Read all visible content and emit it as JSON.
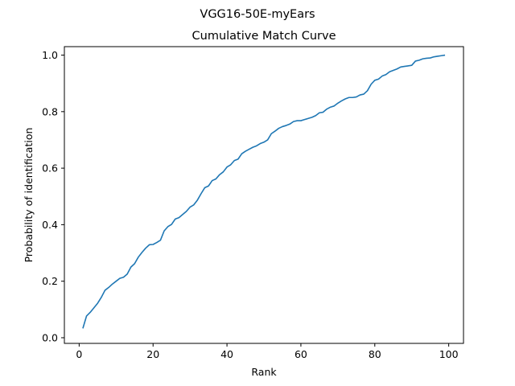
{
  "figure": {
    "suptitle": "VGG16-50E-myEars"
  },
  "chart_data": {
    "type": "line",
    "title": "Cumulative Match Curve",
    "xlabel": "Rank",
    "ylabel": "Probability of identification",
    "xlim": [
      -4,
      104
    ],
    "ylim": [
      -0.02,
      1.03
    ],
    "xticks": [
      0,
      20,
      40,
      60,
      80,
      100
    ],
    "yticks": [
      0.0,
      0.2,
      0.4,
      0.6,
      0.8,
      1.0
    ],
    "xtick_labels": [
      "0",
      "20",
      "40",
      "60",
      "80",
      "100"
    ],
    "ytick_labels": [
      "0.0",
      "0.2",
      "0.4",
      "0.6",
      "0.8",
      "1.0"
    ],
    "grid": false,
    "line_color": "#1f77b4",
    "series": [
      {
        "x": [
          1,
          2,
          3,
          4,
          5,
          6,
          7,
          8,
          9,
          10,
          11,
          12,
          13,
          14,
          15,
          16,
          17,
          18,
          19,
          20,
          21,
          22,
          23,
          24,
          25,
          26,
          27,
          28,
          29,
          30,
          31,
          32,
          33,
          34,
          35,
          36,
          37,
          38,
          39,
          40,
          41,
          42,
          43,
          44,
          45,
          46,
          47,
          48,
          49,
          50,
          51,
          52,
          53,
          54,
          55,
          56,
          57,
          58,
          59,
          60,
          61,
          62,
          63,
          64,
          65,
          66,
          67,
          68,
          69,
          70,
          71,
          72,
          73,
          74,
          75,
          76,
          77,
          78,
          79,
          80,
          81,
          82,
          83,
          84,
          85,
          86,
          87,
          88,
          89,
          90,
          91,
          92,
          93,
          94,
          95,
          96,
          97,
          98,
          99
        ],
        "y": [
          0.033,
          0.077,
          0.09,
          0.106,
          0.122,
          0.143,
          0.168,
          0.178,
          0.19,
          0.2,
          0.21,
          0.214,
          0.225,
          0.25,
          0.262,
          0.285,
          0.302,
          0.317,
          0.329,
          0.33,
          0.337,
          0.345,
          0.378,
          0.393,
          0.401,
          0.42,
          0.425,
          0.436,
          0.447,
          0.462,
          0.47,
          0.487,
          0.51,
          0.531,
          0.537,
          0.556,
          0.562,
          0.577,
          0.587,
          0.604,
          0.612,
          0.627,
          0.632,
          0.651,
          0.66,
          0.667,
          0.674,
          0.679,
          0.687,
          0.692,
          0.7,
          0.722,
          0.731,
          0.741,
          0.747,
          0.751,
          0.756,
          0.765,
          0.768,
          0.768,
          0.772,
          0.776,
          0.78,
          0.786,
          0.796,
          0.798,
          0.809,
          0.816,
          0.82,
          0.83,
          0.838,
          0.845,
          0.85,
          0.85,
          0.852,
          0.859,
          0.862,
          0.874,
          0.897,
          0.911,
          0.915,
          0.926,
          0.931,
          0.941,
          0.946,
          0.951,
          0.958,
          0.96,
          0.962,
          0.964,
          0.979,
          0.982,
          0.987,
          0.989,
          0.99,
          0.994,
          0.996,
          0.998,
          1.0
        ]
      }
    ]
  }
}
